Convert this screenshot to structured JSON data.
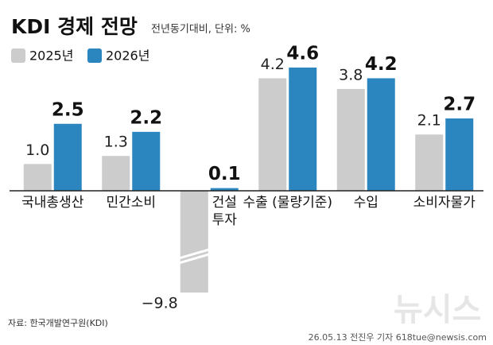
{
  "chart_data": {
    "type": "bar",
    "title": "KDI 경제 전망",
    "subtitle": "전년동기대비, 단위: %",
    "categories": [
      "국내총생산",
      "민간소비",
      "건설투자",
      "수출 (물량기준)",
      "수입",
      "소비자물가"
    ],
    "series": [
      {
        "name": "2025년",
        "color": "#cccccc",
        "values": [
          1.0,
          1.3,
          -9.8,
          4.2,
          3.8,
          2.1
        ],
        "value_labels": [
          "1.0",
          "1.3",
          "−9.8",
          "4.2",
          "3.8",
          "2.1"
        ]
      },
      {
        "name": "2026년",
        "color": "#2b86c0",
        "values": [
          2.5,
          2.2,
          0.1,
          4.6,
          4.2,
          2.7
        ],
        "value_labels": [
          "2.5",
          "2.2",
          "0.1",
          "4.6",
          "4.2",
          "2.7"
        ]
      }
    ],
    "source": "자료: 한국개발연구원(KDI)",
    "credit": "26.05.13 전진우 기자 618tue@newsis.com",
    "logo": "뉴시스"
  }
}
